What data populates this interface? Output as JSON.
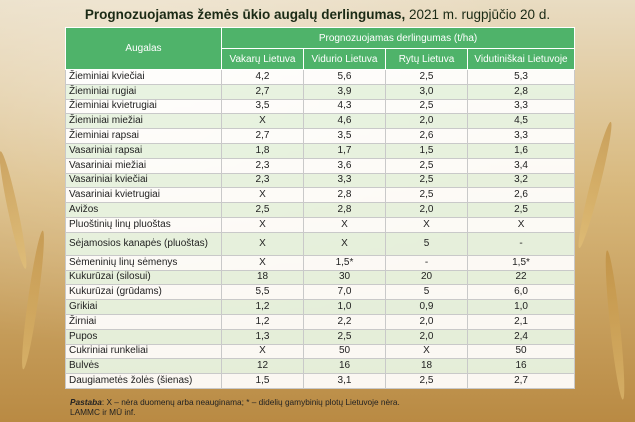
{
  "title": {
    "bold": "Prognozuojamas žemės ūkio augalų derlingumas,",
    "date": " 2021 m. rugpjūčio 20 d."
  },
  "table": {
    "col_crop": "Augalas",
    "group_header": "Prognozuojamas derlingumas (t/ha)",
    "regions": [
      "Vakarų Lietuva",
      "Vidurio Lietuva",
      "Rytų Lietuva",
      "Vidutiniškai Lietuvoje"
    ],
    "rows": [
      {
        "crop": "Žieminiai kviečiai",
        "values": [
          "4,2",
          "5,6",
          "2,5",
          "5,3"
        ]
      },
      {
        "crop": "Žieminiai rugiai",
        "values": [
          "2,7",
          "3,9",
          "3,0",
          "2,8"
        ]
      },
      {
        "crop": "Žieminiai kvietrugiai",
        "values": [
          "3,5",
          "4,3",
          "2,5",
          "3,3"
        ]
      },
      {
        "crop": "Žieminiai miežiai",
        "values": [
          "X",
          "4,6",
          "2,0",
          "4,5"
        ]
      },
      {
        "crop": "Žieminiai rapsai",
        "values": [
          "2,7",
          "3,5",
          "2,6",
          "3,3"
        ]
      },
      {
        "crop": "Vasariniai rapsai",
        "values": [
          "1,8",
          "1,7",
          "1,5",
          "1,6"
        ]
      },
      {
        "crop": "Vasariniai miežiai",
        "values": [
          "2,3",
          "3,6",
          "2,5",
          "3,4"
        ]
      },
      {
        "crop": "Vasariniai kviečiai",
        "values": [
          "2,3",
          "3,3",
          "2,5",
          "3,2"
        ]
      },
      {
        "crop": "Vasariniai kvietrugiai",
        "values": [
          "X",
          "2,8",
          "2,5",
          "2,6"
        ]
      },
      {
        "crop": "Avižos",
        "values": [
          "2,5",
          "2,8",
          "2,0",
          "2,5"
        ]
      },
      {
        "crop": "Pluoštinių linų pluoštas",
        "values": [
          "X",
          "X",
          "X",
          "X"
        ]
      },
      {
        "crop": "Sėjamosios kanapės (pluoštas)",
        "values": [
          "X",
          "X",
          "5",
          "-"
        ]
      },
      {
        "crop": "Sėmeninių linų sėmenys",
        "values": [
          "X",
          "1,5*",
          "-",
          "1,5*"
        ]
      },
      {
        "crop": "Kukurūzai (silosui)",
        "values": [
          "18",
          "30",
          "20",
          "22"
        ]
      },
      {
        "crop": "Kukurūzai (grūdams)",
        "values": [
          "5,5",
          "7,0",
          "5",
          "6,0"
        ]
      },
      {
        "crop": "Grikiai",
        "values": [
          "1,2",
          "1,0",
          "0,9",
          "1,0"
        ]
      },
      {
        "crop": "Žirniai",
        "values": [
          "1,2",
          "2,2",
          "2,0",
          "2,1"
        ]
      },
      {
        "crop": "Pupos",
        "values": [
          "1,3",
          "2,5",
          "2,0",
          "2,4"
        ]
      },
      {
        "crop": "Cukriniai runkeliai",
        "values": [
          "X",
          "50",
          "X",
          "50"
        ]
      },
      {
        "crop": "Bulvės",
        "values": [
          "12",
          "16",
          "18",
          "16"
        ]
      },
      {
        "crop": "Daugiametės žolės (šienas)",
        "values": [
          "1,5",
          "3,1",
          "2,5",
          "2,7"
        ]
      }
    ]
  },
  "footer": {
    "note_label": "Pastaba",
    "note_text": ": X – nėra duomenų arba neauginama; * – didelių gamybinių plotų Lietuvoje nėra.",
    "source": "LAMMC ir MŪ inf."
  }
}
